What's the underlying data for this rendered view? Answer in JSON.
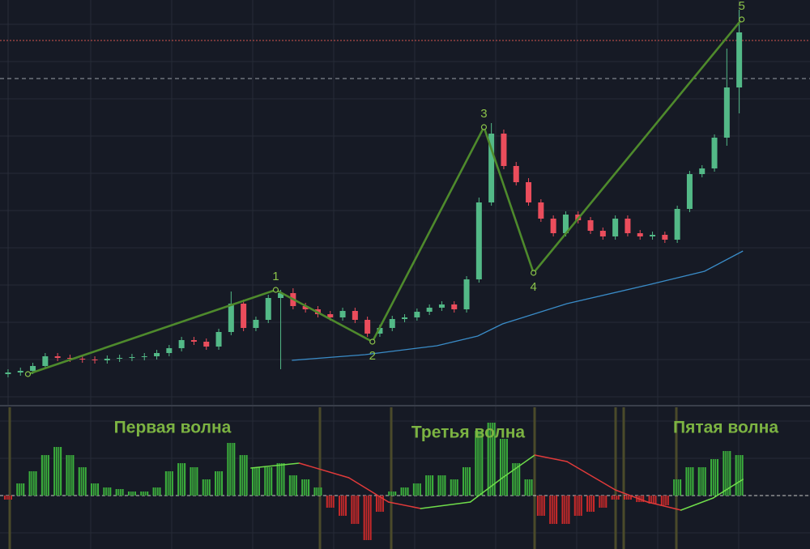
{
  "chart_data": {
    "type": "candlestick",
    "xlim": [
      -0.65,
      64.71
    ],
    "ylim": [
      0,
      125
    ],
    "up_color": "#53b987",
    "down_color": "#eb4d5c",
    "candles": {
      "open": [
        9.5,
        10,
        10.5,
        12,
        15,
        14.5,
        14.25,
        14,
        13.75,
        14.25,
        14.5,
        14.75,
        15,
        16,
        17.5,
        20,
        19.5,
        18,
        22.5,
        31.25,
        23.75,
        26.25,
        33,
        34.5,
        30.5,
        29.5,
        28,
        27,
        29,
        26.25,
        22,
        23.75,
        26.5,
        27,
        28.75,
        30,
        31,
        29.5,
        38.75,
        62.5,
        83.75,
        73.75,
        68.75,
        62.5,
        57.5,
        53,
        58.75,
        57,
        53.75,
        52,
        57.5,
        53,
        52,
        52.5,
        51,
        60.5,
        71.25,
        73,
        82.5,
        98
      ],
      "high": [
        11,
        11.5,
        13,
        16,
        16,
        15.5,
        15.25,
        15,
        15.25,
        15.5,
        15.75,
        16,
        17,
        18.5,
        21,
        21,
        20.5,
        23.5,
        35,
        32.5,
        27.25,
        34,
        35.5,
        36,
        31.5,
        30.5,
        29,
        30,
        30,
        27.25,
        24.75,
        27.5,
        28,
        29.75,
        31,
        32,
        32,
        39.75,
        64,
        87,
        85,
        75,
        70,
        63.5,
        58.5,
        59.75,
        59.75,
        58,
        54.75,
        58.5,
        58.5,
        54,
        53.5,
        53.5,
        61.5,
        72.25,
        74,
        83.5,
        110,
        122
      ],
      "low": [
        8.5,
        9,
        9.5,
        11,
        13.5,
        13.25,
        13,
        12.75,
        12.75,
        13.25,
        13.5,
        13.75,
        14,
        15,
        16.5,
        18.5,
        17,
        17,
        21.5,
        22.75,
        22.75,
        25.25,
        11,
        29.5,
        28.5,
        27,
        26,
        26,
        25.25,
        21,
        21,
        22.75,
        25.5,
        26,
        27.75,
        29,
        28.5,
        28.5,
        37.75,
        61.5,
        72.75,
        67.75,
        61.5,
        56.5,
        52,
        52,
        56,
        52.75,
        51,
        51,
        52,
        51,
        51,
        50,
        50,
        59.5,
        70.25,
        72,
        80,
        90
      ],
      "close": [
        10,
        10.5,
        12,
        15,
        14.5,
        14.25,
        14,
        13.75,
        14.25,
        14.5,
        14.75,
        15,
        16,
        17.5,
        20,
        19.5,
        18,
        22.5,
        31.25,
        23.75,
        26.25,
        33,
        34.5,
        30.5,
        29.5,
        28,
        27,
        29,
        26.25,
        22,
        23.75,
        26.5,
        27,
        28.75,
        30,
        31,
        29.5,
        38.75,
        62.5,
        83.75,
        73.75,
        68.75,
        62.5,
        57.5,
        53,
        58.75,
        57,
        53.75,
        52,
        57.5,
        53,
        52,
        52.5,
        51,
        60.5,
        71.25,
        73,
        82.5,
        98,
        115
      ]
    },
    "waves": {
      "color": "#4e8a2c",
      "labels": [
        null,
        "1",
        "2",
        "3",
        "4",
        "5"
      ],
      "x": [
        1.6,
        21.6,
        29.4,
        38.4,
        42.4,
        59.2
      ],
      "values": [
        9.5,
        35.5,
        19.5,
        85.75,
        40.75,
        119
      ]
    },
    "ma": {
      "color": "#3a8cc8",
      "x": [
        22.9,
        28.8,
        34.6,
        37.9,
        39.9,
        45.1,
        51.6,
        56.2,
        59.3
      ],
      "values": [
        13.75,
        15.5,
        18.25,
        21.25,
        25,
        31.25,
        37,
        41.25,
        47.5
      ]
    },
    "levels": {
      "values": [
        112.5,
        100.75
      ],
      "colors": [
        "#d4554f",
        "#9aa0a6"
      ]
    },
    "oscillator": {
      "ylim": [
        -66,
        109
      ],
      "up_color": "#3fbf3f",
      "down_color": "#d92b2b",
      "values": [
        -5,
        15,
        30,
        50,
        60,
        50,
        35,
        15,
        10,
        8,
        5,
        5,
        10,
        30,
        40,
        35,
        20,
        30,
        65,
        50,
        35,
        35,
        40,
        25,
        20,
        10,
        -15,
        -25,
        -35,
        -55,
        -20,
        5,
        10,
        15,
        25,
        25,
        20,
        35,
        80,
        90,
        70,
        40,
        20,
        -25,
        -35,
        -35,
        -25,
        -20,
        -15,
        -5,
        -5,
        -8,
        -10,
        -12,
        20,
        35,
        35,
        45,
        55,
        50
      ],
      "signal": {
        "x": [
          19.6,
          23.5,
          27.5,
          30.7,
          33.3,
          37.3,
          39.9,
          42.5,
          45.1,
          49,
          51.6,
          54.3,
          56.9,
          59.3
        ],
        "values": [
          34,
          40,
          22,
          -8,
          -16,
          -8,
          22,
          50,
          42,
          7,
          -8,
          -18,
          -3,
          20
        ]
      }
    },
    "annotations": [
      "Первая волна",
      "Третья волна",
      "Пятая волна"
    ]
  }
}
